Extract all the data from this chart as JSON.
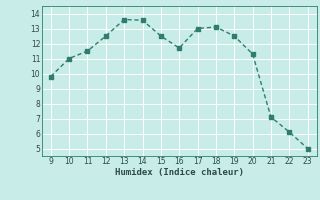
{
  "x": [
    9,
    10,
    11,
    12,
    13,
    14,
    15,
    16,
    17,
    18,
    19,
    20,
    21,
    22,
    23
  ],
  "y": [
    9.8,
    11.0,
    11.5,
    12.5,
    13.6,
    13.55,
    12.5,
    11.7,
    13.0,
    13.1,
    12.5,
    11.3,
    7.1,
    6.1,
    5.0
  ],
  "xlabel": "Humidex (Indice chaleur)",
  "ylim": [
    4.5,
    14.5
  ],
  "xlim": [
    8.5,
    23.5
  ],
  "yticks": [
    5,
    6,
    7,
    8,
    9,
    10,
    11,
    12,
    13,
    14
  ],
  "xticks": [
    9,
    10,
    11,
    12,
    13,
    14,
    15,
    16,
    17,
    18,
    19,
    20,
    21,
    22,
    23
  ],
  "line_color": "#2e7d6e",
  "bg_color": "#c8ece8",
  "grid_color": "#ffffff",
  "marker": "s",
  "marker_size": 2.5
}
